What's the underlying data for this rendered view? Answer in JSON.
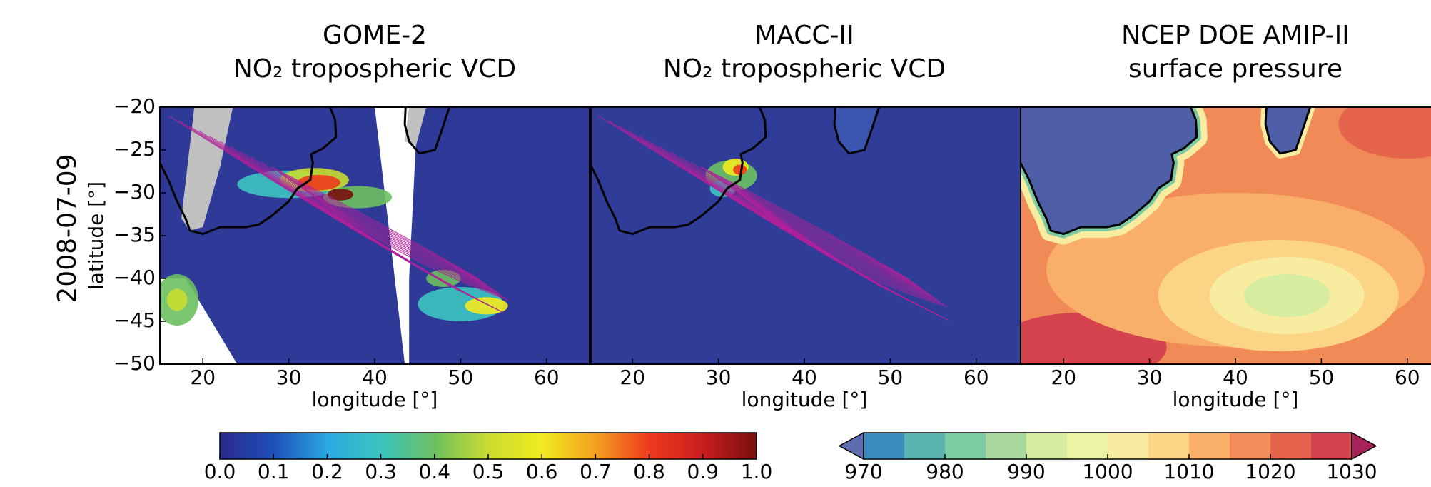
{
  "row_label": "2008-07-09",
  "panels": [
    {
      "title": [
        "GOME-2",
        "NO₂ tropospheric VCD"
      ],
      "xlabel": "longitude [°]",
      "ylabel": "latitude [°]",
      "xlim": [
        15,
        65
      ],
      "ylim": [
        -50,
        -20
      ],
      "xticks": [
        20,
        30,
        40,
        50,
        60
      ],
      "yticks": [
        {
          "value": -20,
          "label": "−20"
        },
        {
          "value": -25,
          "label": "−25"
        },
        {
          "value": -30,
          "label": "−30"
        },
        {
          "value": -35,
          "label": "−35"
        },
        {
          "value": -40,
          "label": "−40"
        },
        {
          "value": -45,
          "label": "−45"
        },
        {
          "value": -50,
          "label": "−50"
        }
      ]
    },
    {
      "title": [
        "MACC-II",
        "NO₂ tropospheric VCD"
      ],
      "xlabel": "longitude [°]",
      "xlim": [
        15,
        65
      ],
      "ylim": [
        -50,
        -20
      ],
      "xticks": [
        20,
        30,
        40,
        50,
        60
      ]
    },
    {
      "title": [
        "NCEP DOE AMIP-II",
        "surface pressure"
      ],
      "xlabel": "longitude [°]",
      "xlim": [
        15,
        65
      ],
      "ylim": [
        -50,
        -20
      ],
      "xticks": [
        20,
        30,
        40,
        50,
        60
      ]
    }
  ],
  "colorbars": [
    {
      "lim": [
        0,
        1
      ],
      "colors": [
        "#2a2a8a",
        "#1f4fb8",
        "#2aa8e0",
        "#3cc4c0",
        "#6cc060",
        "#c8dc30",
        "#f2ea20",
        "#f4a020",
        "#ee3a1c",
        "#c81e1e",
        "#7a0e0e"
      ],
      "ticks": [
        {
          "value": 0,
          "label": "0.0"
        },
        {
          "value": 0.1,
          "label": "0.1"
        },
        {
          "value": 0.2,
          "label": "0.2"
        },
        {
          "value": 0.3,
          "label": "0.3"
        },
        {
          "value": 0.4,
          "label": "0.4"
        },
        {
          "value": 0.5,
          "label": "0.5"
        },
        {
          "value": 0.6,
          "label": "0.6"
        },
        {
          "value": 0.7,
          "label": "0.7"
        },
        {
          "value": 0.8,
          "label": "0.8"
        },
        {
          "value": 0.9,
          "label": "0.9"
        },
        {
          "value": 1,
          "label": "1.0"
        }
      ]
    },
    {
      "lim": [
        970,
        1030
      ],
      "colors": [
        "#3d8cc0",
        "#5bb3ad",
        "#7ccba3",
        "#a8d89e",
        "#d6eca0",
        "#ecf3a5",
        "#f8eca0",
        "#fcd486",
        "#fbb06a",
        "#f38c58",
        "#e6634e",
        "#d5434f"
      ],
      "extend_colors": [
        "#5f6db0",
        "#a8215a"
      ],
      "ticks": [
        970,
        980,
        990,
        1000,
        1010,
        1020,
        1030
      ]
    }
  ]
}
